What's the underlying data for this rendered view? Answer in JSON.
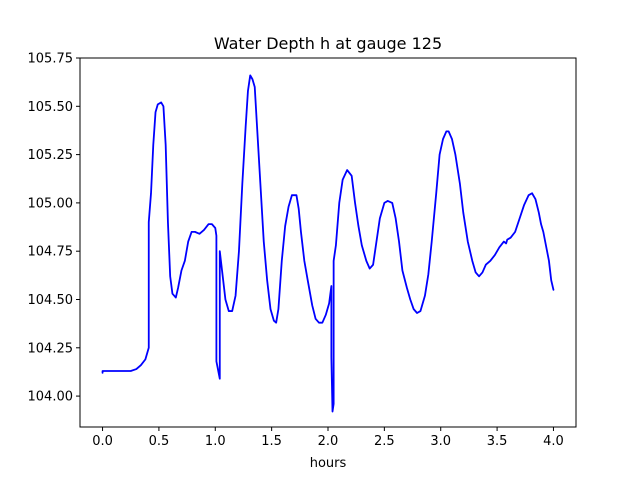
{
  "chart_data": {
    "type": "line",
    "title": "Water Depth h at gauge 125",
    "xlabel": "hours",
    "ylabel": "",
    "xlim": [
      -0.2,
      4.2
    ],
    "ylim": [
      103.84,
      105.75
    ],
    "x_ticks": [
      0.0,
      0.5,
      1.0,
      1.5,
      2.0,
      2.5,
      3.0,
      3.5,
      4.0
    ],
    "x_tick_labels": [
      "0.0",
      "0.5",
      "1.0",
      "1.5",
      "2.0",
      "2.5",
      "3.0",
      "3.5",
      "4.0"
    ],
    "y_ticks": [
      104.0,
      104.25,
      104.5,
      104.75,
      105.0,
      105.25,
      105.5,
      105.75
    ],
    "y_tick_labels": [
      "104.00",
      "104.25",
      "104.50",
      "104.75",
      "105.00",
      "105.25",
      "105.50",
      "105.75"
    ],
    "grid": false,
    "legend": "none",
    "series": [
      {
        "color": "#0000ff",
        "points": [
          [
            0.0,
            104.12
          ],
          [
            0.0,
            104.13
          ],
          [
            0.05,
            104.13
          ],
          [
            0.1,
            104.13
          ],
          [
            0.15,
            104.13
          ],
          [
            0.2,
            104.13
          ],
          [
            0.25,
            104.13
          ],
          [
            0.3,
            104.14
          ],
          [
            0.34,
            104.16
          ],
          [
            0.38,
            104.19
          ],
          [
            0.41,
            104.25
          ],
          [
            0.41,
            104.9
          ],
          [
            0.43,
            105.05
          ],
          [
            0.45,
            105.3
          ],
          [
            0.47,
            105.47
          ],
          [
            0.49,
            105.51
          ],
          [
            0.52,
            105.52
          ],
          [
            0.54,
            105.5
          ],
          [
            0.56,
            105.3
          ],
          [
            0.58,
            104.9
          ],
          [
            0.6,
            104.62
          ],
          [
            0.62,
            104.53
          ],
          [
            0.65,
            104.51
          ],
          [
            0.67,
            104.56
          ],
          [
            0.7,
            104.65
          ],
          [
            0.73,
            104.7
          ],
          [
            0.76,
            104.8
          ],
          [
            0.79,
            104.85
          ],
          [
            0.82,
            104.85
          ],
          [
            0.86,
            104.84
          ],
          [
            0.9,
            104.86
          ],
          [
            0.94,
            104.89
          ],
          [
            0.97,
            104.89
          ],
          [
            1.0,
            104.87
          ],
          [
            1.01,
            104.83
          ],
          [
            1.01,
            104.18
          ],
          [
            1.03,
            104.12
          ],
          [
            1.04,
            104.09
          ],
          [
            1.04,
            104.75
          ],
          [
            1.06,
            104.65
          ],
          [
            1.09,
            104.5
          ],
          [
            1.12,
            104.44
          ],
          [
            1.15,
            104.44
          ],
          [
            1.18,
            104.52
          ],
          [
            1.21,
            104.75
          ],
          [
            1.24,
            105.1
          ],
          [
            1.27,
            105.4
          ],
          [
            1.29,
            105.58
          ],
          [
            1.31,
            105.66
          ],
          [
            1.33,
            105.64
          ],
          [
            1.35,
            105.6
          ],
          [
            1.37,
            105.4
          ],
          [
            1.4,
            105.1
          ],
          [
            1.43,
            104.8
          ],
          [
            1.46,
            104.6
          ],
          [
            1.49,
            104.45
          ],
          [
            1.52,
            104.39
          ],
          [
            1.54,
            104.38
          ],
          [
            1.56,
            104.45
          ],
          [
            1.59,
            104.7
          ],
          [
            1.62,
            104.88
          ],
          [
            1.65,
            104.98
          ],
          [
            1.68,
            105.04
          ],
          [
            1.72,
            105.04
          ],
          [
            1.74,
            104.97
          ],
          [
            1.76,
            104.85
          ],
          [
            1.79,
            104.7
          ],
          [
            1.82,
            104.6
          ],
          [
            1.86,
            104.47
          ],
          [
            1.89,
            104.4
          ],
          [
            1.92,
            104.38
          ],
          [
            1.95,
            104.38
          ],
          [
            1.98,
            104.42
          ],
          [
            2.01,
            104.48
          ],
          [
            2.03,
            104.57
          ],
          [
            2.03,
            104.5
          ],
          [
            2.03,
            104.2
          ],
          [
            2.04,
            103.92
          ],
          [
            2.05,
            103.96
          ],
          [
            2.05,
            104.05
          ],
          [
            2.05,
            104.7
          ],
          [
            2.07,
            104.78
          ],
          [
            2.1,
            105.0
          ],
          [
            2.13,
            105.12
          ],
          [
            2.17,
            105.17
          ],
          [
            2.21,
            105.14
          ],
          [
            2.24,
            105.0
          ],
          [
            2.27,
            104.88
          ],
          [
            2.3,
            104.78
          ],
          [
            2.34,
            104.7
          ],
          [
            2.37,
            104.66
          ],
          [
            2.4,
            104.68
          ],
          [
            2.43,
            104.8
          ],
          [
            2.46,
            104.92
          ],
          [
            2.5,
            105.0
          ],
          [
            2.53,
            105.01
          ],
          [
            2.57,
            105.0
          ],
          [
            2.6,
            104.92
          ],
          [
            2.63,
            104.8
          ],
          [
            2.66,
            104.65
          ],
          [
            2.7,
            104.56
          ],
          [
            2.73,
            104.5
          ],
          [
            2.76,
            104.45
          ],
          [
            2.79,
            104.43
          ],
          [
            2.82,
            104.44
          ],
          [
            2.86,
            104.52
          ],
          [
            2.89,
            104.63
          ],
          [
            2.92,
            104.8
          ],
          [
            2.96,
            105.05
          ],
          [
            2.99,
            105.25
          ],
          [
            3.02,
            105.33
          ],
          [
            3.05,
            105.37
          ],
          [
            3.07,
            105.37
          ],
          [
            3.1,
            105.33
          ],
          [
            3.13,
            105.25
          ],
          [
            3.17,
            105.1
          ],
          [
            3.2,
            104.95
          ],
          [
            3.24,
            104.8
          ],
          [
            3.26,
            104.75
          ],
          [
            3.28,
            104.7
          ],
          [
            3.31,
            104.64
          ],
          [
            3.34,
            104.62
          ],
          [
            3.37,
            104.64
          ],
          [
            3.4,
            104.68
          ],
          [
            3.44,
            104.7
          ],
          [
            3.48,
            104.73
          ],
          [
            3.52,
            104.77
          ],
          [
            3.56,
            104.8
          ],
          [
            3.58,
            104.79
          ],
          [
            3.59,
            104.81
          ],
          [
            3.62,
            104.82
          ],
          [
            3.66,
            104.85
          ],
          [
            3.7,
            104.92
          ],
          [
            3.74,
            104.99
          ],
          [
            3.78,
            105.04
          ],
          [
            3.81,
            105.05
          ],
          [
            3.84,
            105.02
          ],
          [
            3.87,
            104.95
          ],
          [
            3.89,
            104.89
          ],
          [
            3.91,
            104.85
          ],
          [
            3.94,
            104.76
          ],
          [
            3.96,
            104.7
          ],
          [
            3.98,
            104.6
          ],
          [
            4.0,
            104.55
          ]
        ]
      }
    ]
  }
}
